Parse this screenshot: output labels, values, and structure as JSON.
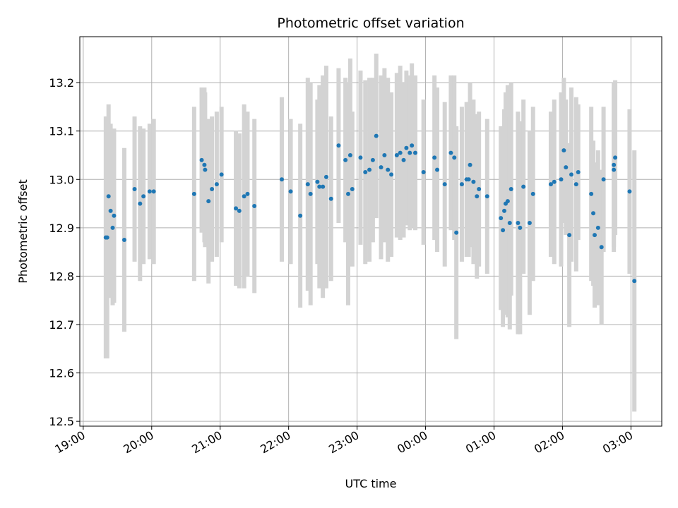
{
  "chart_data": {
    "type": "scatter",
    "title": "Photometric offset variation",
    "xlabel": "UTC time",
    "ylabel": "Photometric offset",
    "x_axis": {
      "min_hours": -0.05,
      "max_hours": 8.45,
      "ticks": [
        {
          "h": 0,
          "label": "19:00"
        },
        {
          "h": 1,
          "label": "20:00"
        },
        {
          "h": 2,
          "label": "21:00"
        },
        {
          "h": 3,
          "label": "22:00"
        },
        {
          "h": 4,
          "label": "23:00"
        },
        {
          "h": 5,
          "label": "00:00"
        },
        {
          "h": 6,
          "label": "01:00"
        },
        {
          "h": 7,
          "label": "02:00"
        },
        {
          "h": 8,
          "label": "03:00"
        }
      ]
    },
    "ylim": [
      12.49,
      13.295
    ],
    "yticks": [
      "12.5",
      "12.6",
      "12.7",
      "12.8",
      "12.9",
      "13.0",
      "13.1",
      "13.2"
    ],
    "grid": true,
    "colors": {
      "point": "#1f77b4",
      "errorbar": "#d3d3d3",
      "grid": "#b0b0b0"
    },
    "points": [
      [
        0.33,
        12.88,
        0.25
      ],
      [
        0.35,
        12.88,
        0.25
      ],
      [
        0.37,
        12.965,
        0.19
      ],
      [
        0.4,
        12.935,
        0.18
      ],
      [
        0.43,
        12.9,
        0.16
      ],
      [
        0.45,
        12.925,
        0.18
      ],
      [
        0.6,
        12.875,
        0.19
      ],
      [
        0.75,
        12.98,
        0.15
      ],
      [
        0.83,
        12.95,
        0.16
      ],
      [
        0.88,
        12.965,
        0.14
      ],
      [
        0.97,
        12.975,
        0.14
      ],
      [
        1.03,
        12.975,
        0.15
      ],
      [
        1.62,
        12.97,
        0.18
      ],
      [
        1.73,
        13.04,
        0.15
      ],
      [
        1.77,
        13.03,
        0.16
      ],
      [
        1.78,
        13.02,
        0.16
      ],
      [
        1.83,
        12.955,
        0.17
      ],
      [
        1.88,
        12.98,
        0.15
      ],
      [
        1.95,
        12.99,
        0.15
      ],
      [
        2.02,
        13.01,
        0.14
      ],
      [
        2.23,
        12.94,
        0.16
      ],
      [
        2.28,
        12.935,
        0.16
      ],
      [
        2.35,
        12.965,
        0.19
      ],
      [
        2.4,
        12.97,
        0.17
      ],
      [
        2.5,
        12.945,
        0.18
      ],
      [
        2.9,
        13.0,
        0.17
      ],
      [
        3.03,
        12.975,
        0.15
      ],
      [
        3.17,
        12.925,
        0.19
      ],
      [
        3.28,
        12.99,
        0.22
      ],
      [
        3.32,
        12.97,
        0.23
      ],
      [
        3.42,
        12.995,
        0.17
      ],
      [
        3.45,
        12.985,
        0.21
      ],
      [
        3.5,
        12.985,
        0.23
      ],
      [
        3.55,
        13.005,
        0.23
      ],
      [
        3.62,
        12.96,
        0.17
      ],
      [
        3.73,
        13.07,
        0.16
      ],
      [
        3.83,
        13.04,
        0.17
      ],
      [
        3.87,
        12.97,
        0.23
      ],
      [
        3.9,
        13.05,
        0.2
      ],
      [
        3.93,
        12.98,
        0.16
      ],
      [
        4.05,
        13.045,
        0.18
      ],
      [
        4.12,
        13.015,
        0.19
      ],
      [
        4.18,
        13.02,
        0.19
      ],
      [
        4.23,
        13.04,
        0.17
      ],
      [
        4.28,
        13.09,
        0.17
      ],
      [
        4.35,
        13.025,
        0.19
      ],
      [
        4.4,
        13.05,
        0.18
      ],
      [
        4.45,
        13.02,
        0.19
      ],
      [
        4.5,
        13.01,
        0.17
      ],
      [
        4.58,
        13.05,
        0.17
      ],
      [
        4.63,
        13.055,
        0.18
      ],
      [
        4.68,
        13.04,
        0.16
      ],
      [
        4.72,
        13.065,
        0.16
      ],
      [
        4.77,
        13.055,
        0.16
      ],
      [
        4.8,
        13.07,
        0.17
      ],
      [
        4.85,
        13.055,
        0.16
      ],
      [
        4.97,
        13.015,
        0.15
      ],
      [
        5.13,
        13.045,
        0.17
      ],
      [
        5.17,
        13.02,
        0.17
      ],
      [
        5.28,
        12.99,
        0.17
      ],
      [
        5.37,
        13.055,
        0.16
      ],
      [
        5.42,
        13.045,
        0.17
      ],
      [
        5.45,
        12.89,
        0.22
      ],
      [
        5.53,
        12.99,
        0.16
      ],
      [
        5.6,
        13.0,
        0.16
      ],
      [
        5.63,
        13.0,
        0.16
      ],
      [
        5.65,
        13.03,
        0.17
      ],
      [
        5.7,
        12.995,
        0.17
      ],
      [
        5.75,
        12.965,
        0.17
      ],
      [
        5.78,
        12.98,
        0.16
      ],
      [
        5.9,
        12.965,
        0.16
      ],
      [
        6.1,
        12.92,
        0.19
      ],
      [
        6.13,
        12.895,
        0.2
      ],
      [
        6.15,
        12.935,
        0.21
      ],
      [
        6.17,
        12.95,
        0.23
      ],
      [
        6.2,
        12.955,
        0.24
      ],
      [
        6.23,
        12.91,
        0.22
      ],
      [
        6.25,
        12.98,
        0.22
      ],
      [
        6.35,
        12.91,
        0.23
      ],
      [
        6.38,
        12.9,
        0.22
      ],
      [
        6.43,
        12.985,
        0.18
      ],
      [
        6.52,
        12.91,
        0.19
      ],
      [
        6.57,
        12.97,
        0.18
      ],
      [
        6.83,
        12.99,
        0.15
      ],
      [
        6.88,
        12.995,
        0.17
      ],
      [
        6.98,
        13.0,
        0.18
      ],
      [
        7.02,
        13.06,
        0.15
      ],
      [
        7.05,
        13.025,
        0.14
      ],
      [
        7.1,
        12.885,
        0.19
      ],
      [
        7.13,
        13.01,
        0.18
      ],
      [
        7.2,
        12.99,
        0.18
      ],
      [
        7.23,
        13.015,
        0.14
      ],
      [
        7.42,
        12.97,
        0.18
      ],
      [
        7.45,
        12.93,
        0.15
      ],
      [
        7.47,
        12.885,
        0.15
      ],
      [
        7.52,
        12.9,
        0.16
      ],
      [
        7.57,
        12.86,
        0.16
      ],
      [
        7.6,
        13.0,
        0.15
      ],
      [
        7.75,
        13.03,
        0.17
      ],
      [
        7.75,
        13.02,
        0.17
      ],
      [
        7.77,
        13.045,
        0.16
      ],
      [
        7.98,
        12.975,
        0.17
      ],
      [
        8.05,
        12.79,
        0.27
      ]
    ]
  }
}
